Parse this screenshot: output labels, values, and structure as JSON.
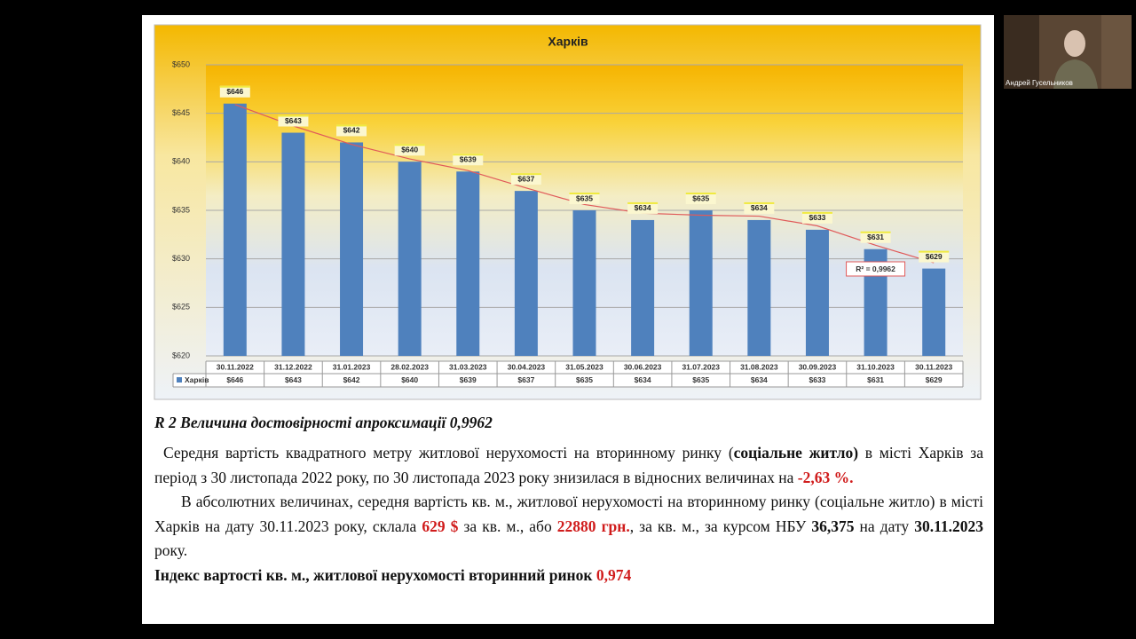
{
  "chart_data": {
    "type": "bar",
    "title": "Харків",
    "categories": [
      "30.11.2022",
      "31.12.2022",
      "31.01.2023",
      "28.02.2023",
      "31.03.2023",
      "30.04.2023",
      "31.05.2023",
      "30.06.2023",
      "31.07.2023",
      "31.08.2023",
      "30.09.2023",
      "31.10.2023",
      "30.11.2023"
    ],
    "series": [
      {
        "name": "Харків",
        "color": "#4f81bd",
        "values": [
          646,
          643,
          642,
          640,
          639,
          637,
          635,
          634,
          635,
          634,
          633,
          631,
          629
        ],
        "value_labels": [
          "$646",
          "$643",
          "$642",
          "$640",
          "$639",
          "$637",
          "$635",
          "$634",
          "$635",
          "$634",
          "$633",
          "$631",
          "$629"
        ]
      }
    ],
    "trendline": {
      "color": "#e05a5a",
      "label": "R² = 0,9962",
      "values": [
        645.9,
        643.7,
        641.8,
        640.3,
        639.1,
        637.3,
        635.6,
        634.7,
        634.5,
        634.4,
        633.4,
        631.4,
        629.6
      ]
    },
    "ylim": [
      620,
      650
    ],
    "yticks": [
      {
        "value": 620,
        "label": "$620"
      },
      {
        "value": 625,
        "label": "$625"
      },
      {
        "value": 630,
        "label": "$630"
      },
      {
        "value": 635,
        "label": "$635"
      },
      {
        "value": 640,
        "label": "$640"
      },
      {
        "value": 645,
        "label": "$645"
      },
      {
        "value": 650,
        "label": "$650"
      }
    ],
    "grid": true,
    "data_table": true
  },
  "document": {
    "heading": "R 2 Величина достовірності апроксимації 0,9962",
    "paragraphs": [
      [
        {
          "text": "Середня вартість квадратного метру житлової нерухомості на вторинному ринку (",
          "style": "normal"
        },
        {
          "text": "соціальне житло)",
          "style": "bold"
        },
        {
          "text": " в місті Харків за період з 30 листопада 2022 року, по 30 листопада 2023 року знизилася в відносних величинах на ",
          "style": "normal"
        },
        {
          "text": "-2,63 %.",
          "style": "red"
        }
      ],
      [
        {
          "text": "В абсолютних величинах, середня вартість кв. м., житлової нерухомості на вторинному ринку (соціальне житло) в місті Харків на дату 30.11.2023 року, склала ",
          "style": "normal"
        },
        {
          "text": "629 $",
          "style": "red"
        },
        {
          "text": " за кв. м., або ",
          "style": "normal"
        },
        {
          "text": "22880 грн.",
          "style": "red"
        },
        {
          "text": ", за кв. м., за курсом НБУ ",
          "style": "normal"
        },
        {
          "text": "36,375",
          "style": "bold"
        },
        {
          "text": " на дату ",
          "style": "normal"
        },
        {
          "text": "30.11.2023",
          "style": "bold"
        },
        {
          "text": " року.",
          "style": "normal"
        }
      ],
      [
        {
          "text": "Індекс вартості кв. м., житлової нерухомості вторинний ринок ",
          "style": "bold"
        },
        {
          "text": "0,974",
          "style": "red"
        }
      ]
    ]
  },
  "call": {
    "participant": "Андрей Гусельников"
  }
}
